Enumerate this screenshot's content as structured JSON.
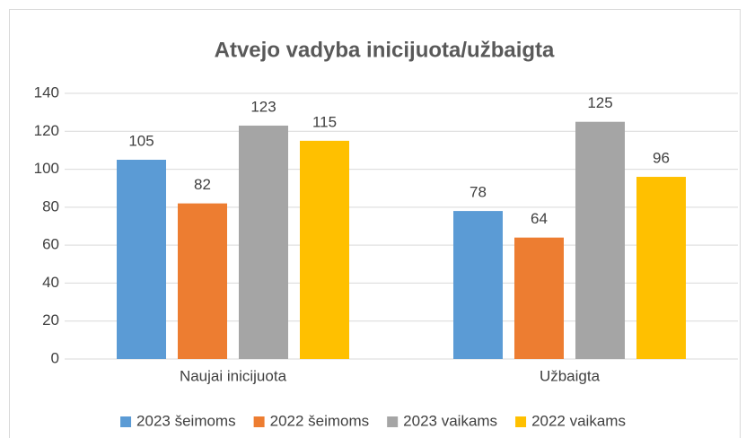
{
  "chart_data": {
    "type": "bar",
    "title": "Atvejo vadyba inicijuota/užbaigta",
    "categories": [
      "Naujai inicijuota",
      "Užbaigta"
    ],
    "series": [
      {
        "name": "2023 šeimoms",
        "color": "#5b9bd5",
        "values": [
          105,
          78
        ]
      },
      {
        "name": "2022 šeimoms",
        "color": "#ed7d31",
        "values": [
          82,
          64
        ]
      },
      {
        "name": "2023 vaikams",
        "color": "#a5a5a5",
        "values": [
          123,
          125
        ]
      },
      {
        "name": "2022 vaikams",
        "color": "#ffc000",
        "values": [
          115,
          96
        ]
      }
    ],
    "ylim": [
      0,
      140
    ],
    "yticks": [
      0,
      20,
      40,
      60,
      80,
      100,
      120,
      140
    ],
    "grid": true,
    "legend": "bottom"
  }
}
